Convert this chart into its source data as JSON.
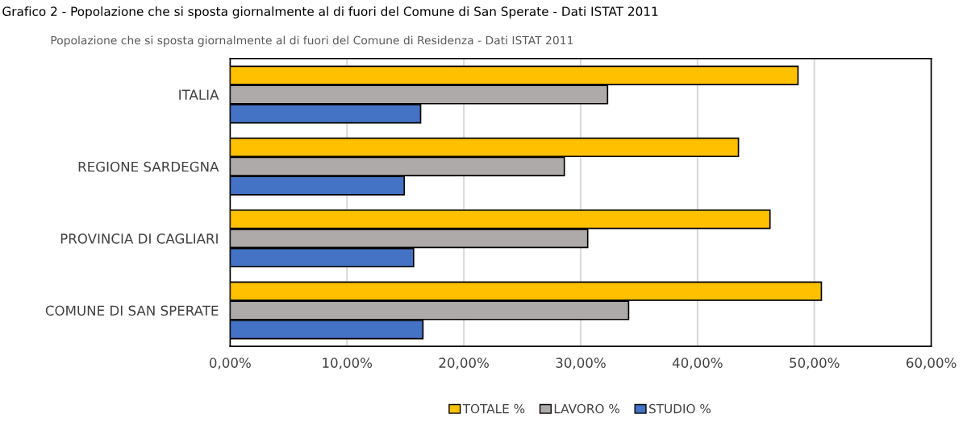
{
  "chart_data": {
    "type": "bar",
    "orientation": "horizontal",
    "title": "Popolazione che si sposta giornalmente al di fuori del Comune di Residenza - Dati ISTAT 2011",
    "annotations": [
      "Grafico 2 - Popolazione che si sposta giornalmente al di fuori del Comune di San Sperate - Dati ISTAT 2011"
    ],
    "categories": [
      "ITALIA",
      "REGIONE SARDEGNA",
      "PROVINCIA DI CAGLIARI",
      "COMUNE DI SAN SPERATE"
    ],
    "series": [
      {
        "name": "TOTALE %",
        "color": "#ffc000",
        "values": [
          48.6,
          43.5,
          46.2,
          50.6
        ]
      },
      {
        "name": "LAVORO %",
        "color": "#aeaaaa",
        "values": [
          32.3,
          28.6,
          30.6,
          34.1
        ]
      },
      {
        "name": "STUDIO %",
        "color": "#4472c4",
        "values": [
          16.3,
          14.9,
          15.7,
          16.5
        ]
      }
    ],
    "xlim": [
      0,
      60
    ],
    "xticks": [
      {
        "value": 0,
        "label": "0,00%"
      },
      {
        "value": 10,
        "label": "10,00%"
      },
      {
        "value": 20,
        "label": "20,00%"
      },
      {
        "value": 30,
        "label": "30,00%"
      },
      {
        "value": 40,
        "label": "40,00%"
      },
      {
        "value": 50,
        "label": "50,00%"
      },
      {
        "value": 60,
        "label": "60,00%"
      }
    ],
    "grid": "x",
    "legend": "bottom"
  }
}
